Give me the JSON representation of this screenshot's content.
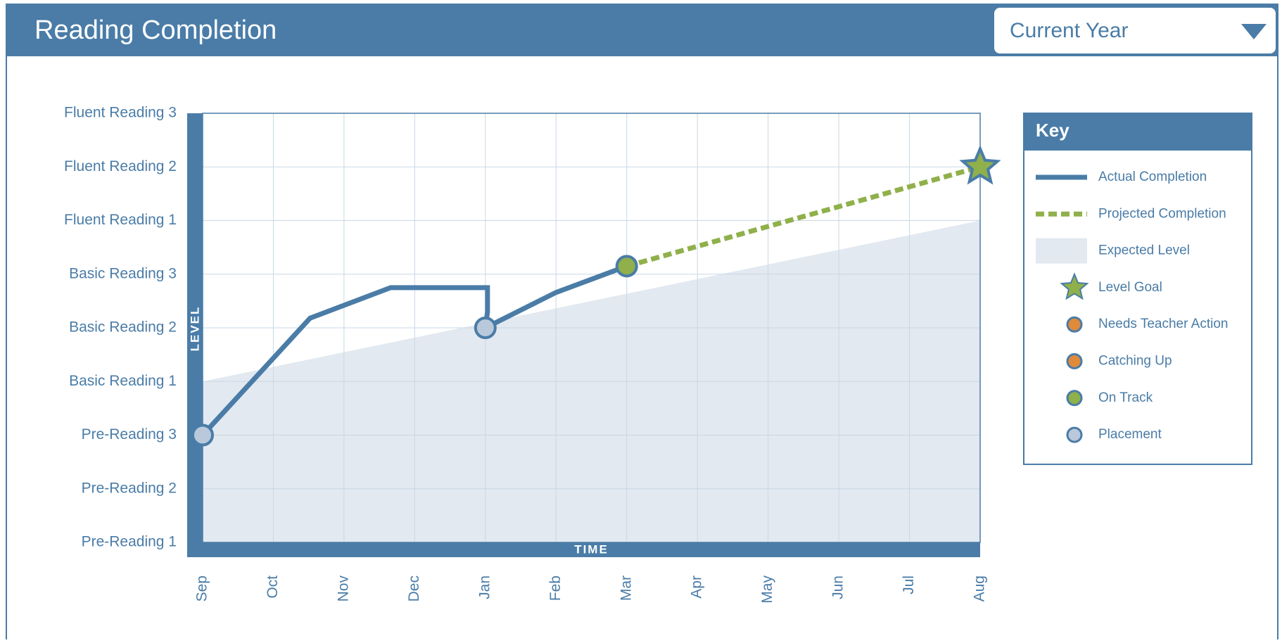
{
  "header": {
    "title": "Reading Completion",
    "dropdown": "Current Year"
  },
  "chart_data": {
    "type": "line",
    "ylabel": "LEVEL",
    "xlabel": "TIME",
    "ylim": [
      0,
      8
    ],
    "yticks": [
      {
        "value": 0,
        "label": "Pre-Reading 1"
      },
      {
        "value": 1,
        "label": "Pre-Reading 2"
      },
      {
        "value": 2,
        "label": "Pre-Reading 3"
      },
      {
        "value": 3,
        "label": "Basic Reading 1"
      },
      {
        "value": 4,
        "label": "Basic Reading 2"
      },
      {
        "value": 5,
        "label": "Basic Reading 3"
      },
      {
        "value": 6,
        "label": "Fluent Reading 1"
      },
      {
        "value": 7,
        "label": "Fluent Reading 2"
      },
      {
        "value": 8,
        "label": "Fluent Reading 3"
      }
    ],
    "xlim": [
      0,
      11
    ],
    "xticks": [
      {
        "value": 0,
        "label": "Sep"
      },
      {
        "value": 1,
        "label": "Oct"
      },
      {
        "value": 2,
        "label": "Nov"
      },
      {
        "value": 3,
        "label": "Dec"
      },
      {
        "value": 4,
        "label": "Jan"
      },
      {
        "value": 5,
        "label": "Feb"
      },
      {
        "value": 6,
        "label": "Mar"
      },
      {
        "value": 7,
        "label": "Apr"
      },
      {
        "value": 8,
        "label": "May"
      },
      {
        "value": 9,
        "label": "Jun"
      },
      {
        "value": 10,
        "label": "Jul"
      },
      {
        "value": 11,
        "label": "Aug"
      }
    ],
    "grid": true,
    "legend_title": "Key",
    "series": [
      {
        "name": "Actual Completion",
        "kind": "line",
        "color": "#4a7ca7",
        "x": [
          0,
          1.52,
          2.66,
          4.03,
          4.03,
          4,
          5,
          6
        ],
        "values": [
          2,
          4.18,
          4.75,
          4.75,
          4.3,
          4,
          4.66,
          5.15
        ]
      },
      {
        "name": "Projected Completion",
        "kind": "dashed",
        "color": "#8fb04a",
        "x": [
          6,
          11
        ],
        "values": [
          5.15,
          7
        ]
      },
      {
        "name": "Expected Level",
        "kind": "area",
        "color": "#e2e9f0",
        "x": [
          0,
          11
        ],
        "values": [
          3,
          6
        ]
      },
      {
        "name": "Level Goal",
        "kind": "star",
        "color": "#8fb04a",
        "x": [
          11
        ],
        "values": [
          7
        ]
      },
      {
        "name": "Needs Teacher Action",
        "kind": "dot",
        "color": "#e08a3c",
        "x": [],
        "values": []
      },
      {
        "name": "Catching Up",
        "kind": "dot",
        "color": "#e08a3c",
        "x": [],
        "values": []
      },
      {
        "name": "On Track",
        "kind": "dot",
        "color": "#8fb04a",
        "x": [
          6
        ],
        "values": [
          5.15
        ]
      },
      {
        "name": "Placement",
        "kind": "dot",
        "color": "#b9c9db",
        "x": [
          0,
          4
        ],
        "values": [
          2,
          4
        ]
      }
    ]
  }
}
